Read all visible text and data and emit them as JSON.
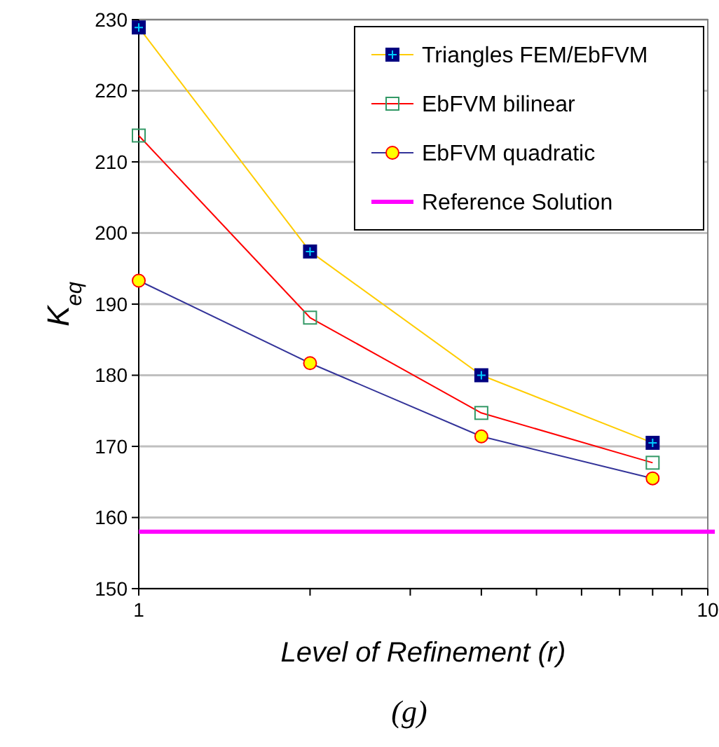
{
  "chart_data": {
    "type": "line",
    "xlabel": "Level of Refinement (r)",
    "ylabel": "K$_{eq}$",
    "x": [
      1,
      2,
      4,
      8
    ],
    "log": "x",
    "xlim": [
      1,
      10
    ],
    "xticks": [
      1,
      {
        "value": 2,
        "label": null
      },
      {
        "value": 3,
        "label": null
      },
      {
        "value": 4,
        "label": null
      },
      {
        "value": 5,
        "label": null
      },
      {
        "value": 6,
        "label": null
      },
      {
        "value": 7,
        "label": null
      },
      {
        "value": 8,
        "label": null
      },
      {
        "value": 9,
        "label": null
      },
      10
    ],
    "ylim": [
      150,
      230
    ],
    "yticks": [
      150,
      160,
      170,
      180,
      190,
      200,
      210,
      220,
      230
    ],
    "grid": "y",
    "legend": "top right",
    "series": [
      {
        "name": "Triangles FEM/EbFVM",
        "color": "#ffcc00",
        "marker": "square",
        "values": [
          228.9,
          197.4,
          180.0,
          170.5
        ]
      },
      {
        "name": "EbFVM bilinear",
        "color": "#ff0000",
        "marker": "square",
        "values": [
          213.7,
          188.1,
          174.7,
          167.7
        ]
      },
      {
        "name": "EbFVM quadratic",
        "color": "#333399",
        "marker": "circle",
        "values": [
          193.3,
          181.7,
          171.4,
          165.5
        ]
      }
    ],
    "ref_lines": [
      {
        "axis": "y",
        "value": 158,
        "label": "Reference Solution",
        "color": "#ff00ff"
      }
    ],
    "annotations": [
      "(g)"
    ]
  }
}
